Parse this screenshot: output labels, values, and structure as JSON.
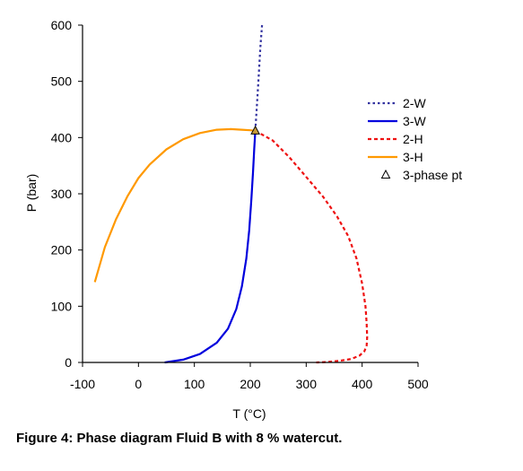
{
  "caption": "Figure 4: Phase diagram Fluid B with 8 % watercut.",
  "chart_data": {
    "type": "line",
    "title": "",
    "xlabel": "T (°C)",
    "ylabel": "P (bar)",
    "xlim": [
      -100,
      500
    ],
    "ylim": [
      0,
      600
    ],
    "xticks": [
      "-100",
      "0",
      "100",
      "200",
      "300",
      "400",
      "500"
    ],
    "yticks": [
      "0",
      "100",
      "200",
      "300",
      "400",
      "500",
      "600"
    ],
    "grid": false,
    "legend": "right",
    "series": [
      {
        "name": "2-W",
        "style": "dotted",
        "color": "#3333a0",
        "x": [
          209,
          212,
          215,
          218,
          221
        ],
        "y": [
          412,
          460,
          510,
          560,
          600
        ]
      },
      {
        "name": "3-W",
        "style": "solid",
        "color": "#0000dd",
        "x": [
          47,
          80,
          110,
          140,
          160,
          175,
          185,
          193,
          198,
          202,
          205,
          207,
          209
        ],
        "y": [
          0,
          5,
          15,
          35,
          60,
          95,
          135,
          185,
          235,
          290,
          340,
          380,
          412
        ]
      },
      {
        "name": "2-H",
        "style": "dashed",
        "color": "#ee1111",
        "x": [
          209,
          240,
          270,
          300,
          330,
          355,
          375,
          390,
          400,
          406,
          408,
          409,
          408,
          404,
          395,
          380,
          360,
          340,
          318
        ],
        "y": [
          412,
          395,
          365,
          330,
          295,
          260,
          225,
          185,
          140,
          100,
          70,
          45,
          30,
          20,
          12,
          6,
          3,
          1,
          0
        ]
      },
      {
        "name": "3-H",
        "style": "solid",
        "color": "#ff9900",
        "x": [
          -78,
          -60,
          -40,
          -20,
          0,
          20,
          50,
          80,
          110,
          140,
          165,
          185,
          200,
          209
        ],
        "y": [
          143,
          205,
          255,
          295,
          328,
          352,
          379,
          397,
          408,
          414,
          415,
          414,
          413,
          412
        ]
      },
      {
        "name": "3-phase pt",
        "style": "marker",
        "color": "#000000",
        "x": [
          209
        ],
        "y": [
          412
        ]
      }
    ]
  }
}
